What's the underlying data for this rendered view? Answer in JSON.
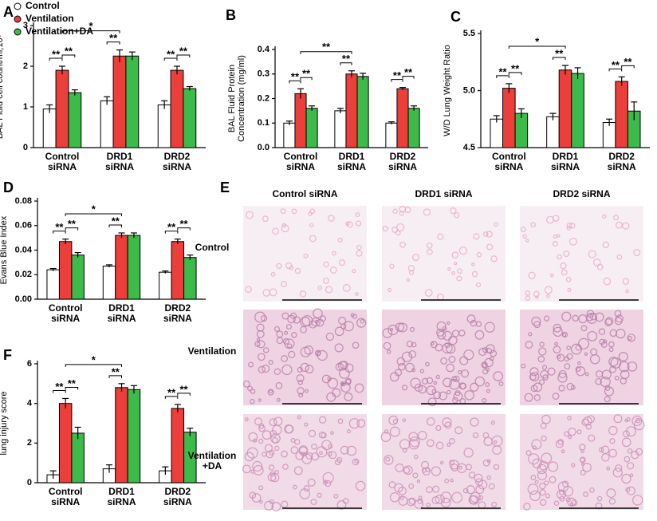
{
  "chart_data": [
    {
      "type": "bar",
      "panel": "A",
      "ylabel": "BAL Fluid cell count/ml,10⁵",
      "categories": [
        "Control siRNA",
        "DRD1 siRNA",
        "DRD2 siRNA"
      ],
      "series": [
        {
          "name": "Control",
          "color": "#ffffff",
          "values": [
            0.95,
            1.15,
            1.05
          ],
          "errors": [
            0.1,
            0.1,
            0.1
          ]
        },
        {
          "name": "Ventilation",
          "color": "#ec3f3b",
          "values": [
            1.9,
            2.25,
            1.9
          ],
          "errors": [
            0.1,
            0.15,
            0.1
          ]
        },
        {
          "name": "Ventilation+DA",
          "color": "#3dbb4a",
          "values": [
            1.35,
            2.25,
            1.45
          ],
          "errors": [
            0.07,
            0.1,
            0.05
          ]
        }
      ],
      "ylim": [
        0,
        3
      ],
      "yticks": [
        0,
        1,
        2,
        3
      ],
      "annotations": [
        "**",
        "**",
        "**",
        "**",
        "**",
        "*"
      ]
    },
    {
      "type": "bar",
      "panel": "B",
      "ylabel": "BAL Fluid Protein Concentration (mg/ml)",
      "categories": [
        "Control siRNA",
        "DRD1 siRNA",
        "DRD2 siRNA"
      ],
      "series": [
        {
          "color": "#ffffff",
          "values": [
            0.1,
            0.15,
            0.1
          ],
          "errors": [
            0.008,
            0.01,
            0.005
          ]
        },
        {
          "color": "#ec3f3b",
          "values": [
            0.22,
            0.3,
            0.24
          ],
          "errors": [
            0.02,
            0.013,
            0.005
          ]
        },
        {
          "color": "#3dbb4a",
          "values": [
            0.16,
            0.29,
            0.16
          ],
          "errors": [
            0.01,
            0.013,
            0.01
          ]
        }
      ],
      "ylim": [
        0,
        0.4
      ],
      "yticks": [
        {
          "value": 0,
          "label": "0.0"
        },
        0.1,
        0.2,
        0.3,
        0.4
      ],
      "annotations": [
        "**",
        "**",
        "**",
        "**",
        "**",
        "**"
      ]
    },
    {
      "type": "bar",
      "panel": "C",
      "ylabel": "W/D Lung Weight Ratio",
      "categories": [
        "Control siRNA",
        "DRD1 siRNA",
        "DRD2 siRNA"
      ],
      "series": [
        {
          "color": "#ffffff",
          "values": [
            4.75,
            4.77,
            4.72
          ],
          "errors": [
            0.03,
            0.03,
            0.03
          ]
        },
        {
          "color": "#ec3f3b",
          "values": [
            5.02,
            5.18,
            5.08
          ],
          "errors": [
            0.04,
            0.04,
            0.04
          ]
        },
        {
          "color": "#3dbb4a",
          "values": [
            4.8,
            5.15,
            4.82
          ],
          "errors": [
            0.04,
            0.05,
            0.08
          ]
        }
      ],
      "ylim": [
        4.5,
        5.5
      ],
      "yticks": [
        4.5,
        {
          "value": 5,
          "label": "5.0"
        },
        5.5
      ],
      "annotations": [
        "**",
        "**",
        "**",
        "**",
        "**",
        "*"
      ]
    },
    {
      "type": "bar",
      "panel": "D",
      "ylabel": "Evans Blue Index",
      "categories": [
        "Control siRNA",
        "DRD1 siRNA",
        "DRD2 siRNA"
      ],
      "series": [
        {
          "color": "#ffffff",
          "values": [
            0.024,
            0.027,
            0.022
          ],
          "errors": [
            0.001,
            0.001,
            0.001
          ]
        },
        {
          "color": "#ec3f3b",
          "values": [
            0.047,
            0.052,
            0.047
          ],
          "errors": [
            0.002,
            0.002,
            0.002
          ]
        },
        {
          "color": "#3dbb4a",
          "values": [
            0.036,
            0.052,
            0.034
          ],
          "errors": [
            0.002,
            0.002,
            0.002
          ]
        }
      ],
      "ylim": [
        0,
        0.08
      ],
      "yticks": [
        {
          "value": 0,
          "label": "0.00"
        },
        0.02,
        0.04,
        0.06,
        {
          "value": 0.08,
          "label": "0.08"
        }
      ],
      "annotations": [
        "**",
        "**",
        "**",
        "**",
        "**",
        "*"
      ]
    },
    {
      "type": "bar",
      "panel": "F",
      "ylabel": "lung injury score",
      "categories": [
        "Control siRNA",
        "DRD1 siRNA",
        "DRD2 siRNA"
      ],
      "series": [
        {
          "color": "#ffffff",
          "values": [
            0.4,
            0.7,
            0.6
          ],
          "errors": [
            0.2,
            0.2,
            0.2
          ]
        },
        {
          "color": "#ec3f3b",
          "values": [
            4.0,
            4.8,
            3.75
          ],
          "errors": [
            0.25,
            0.2,
            0.2
          ]
        },
        {
          "color": "#3dbb4a",
          "values": [
            2.5,
            4.7,
            2.55
          ],
          "errors": [
            0.3,
            0.2,
            0.2
          ]
        }
      ],
      "ylim": [
        0,
        6
      ],
      "yticks": [
        0,
        2,
        4,
        6
      ],
      "annotations": [
        "**",
        "**",
        "**",
        "**",
        "**",
        "*"
      ]
    }
  ],
  "panel_e": {
    "panel": "E",
    "columns": [
      "Control siRNA",
      "DRD1 siRNA",
      "DRD2 siRNA"
    ],
    "rows": [
      "Control",
      "Ventilation",
      "Ventilation +DA"
    ]
  }
}
